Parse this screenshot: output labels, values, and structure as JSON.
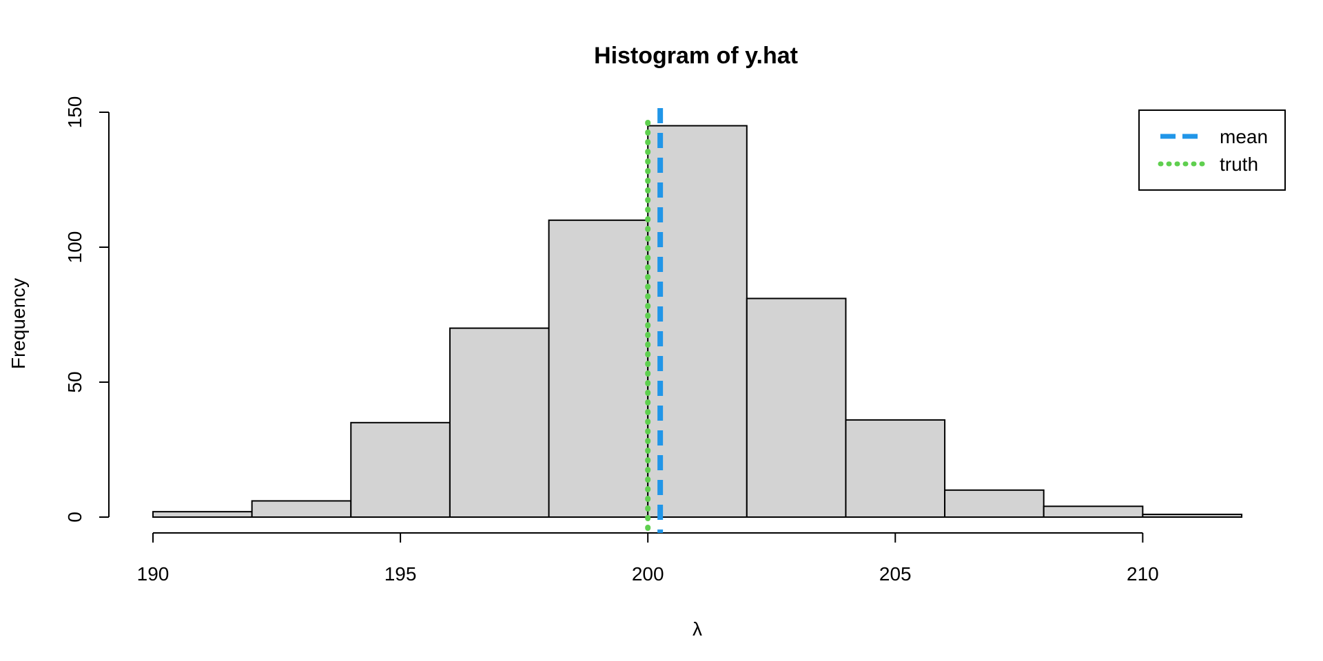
{
  "chart_data": {
    "type": "bar",
    "title": "Histogram of y.hat",
    "xlabel": "λ",
    "ylabel": "Frequency",
    "bins": [
      {
        "x0": 190,
        "x1": 192,
        "count": 2
      },
      {
        "x0": 192,
        "x1": 194,
        "count": 6
      },
      {
        "x0": 194,
        "x1": 196,
        "count": 35
      },
      {
        "x0": 196,
        "x1": 198,
        "count": 70
      },
      {
        "x0": 198,
        "x1": 200,
        "count": 110
      },
      {
        "x0": 200,
        "x1": 202,
        "count": 145
      },
      {
        "x0": 202,
        "x1": 204,
        "count": 81
      },
      {
        "x0": 204,
        "x1": 206,
        "count": 36
      },
      {
        "x0": 206,
        "x1": 208,
        "count": 10
      },
      {
        "x0": 208,
        "x1": 210,
        "count": 4
      },
      {
        "x0": 210,
        "x1": 212,
        "count": 1
      }
    ],
    "xticks": [
      190,
      195,
      200,
      205,
      210
    ],
    "yticks": [
      0,
      50,
      100,
      150
    ],
    "xlim": [
      190,
      212
    ],
    "ylim": [
      0,
      150
    ],
    "grid": false,
    "bar_color": "#d3d3d3",
    "vlines": [
      {
        "name": "mean",
        "x": 200.25,
        "color": "#2196e8",
        "style": "dashed"
      },
      {
        "name": "truth",
        "x": 200,
        "color": "#5fcf4f",
        "style": "dotted"
      }
    ],
    "legend": {
      "position": "top-right",
      "entries": [
        {
          "label": "mean",
          "color": "#2196e8",
          "style": "dashed"
        },
        {
          "label": "truth",
          "color": "#5fcf4f",
          "style": "dotted"
        }
      ]
    }
  }
}
